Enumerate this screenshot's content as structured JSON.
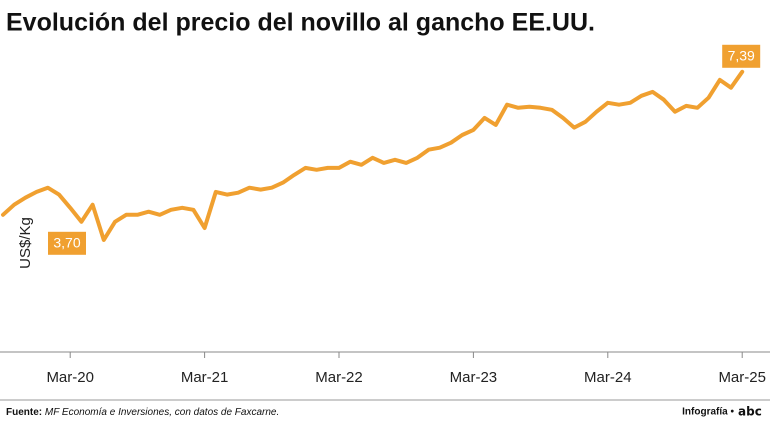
{
  "chart_data": {
    "type": "line",
    "title": "Evolución del precio del novillo al gancho EE.UU.",
    "y_label": "US$/Kg",
    "categories": [
      null,
      null,
      null,
      null,
      null,
      null,
      "Mar-20",
      null,
      null,
      null,
      null,
      null,
      null,
      null,
      null,
      null,
      null,
      null,
      "Mar-21",
      null,
      null,
      null,
      null,
      null,
      null,
      null,
      null,
      null,
      null,
      null,
      "Mar-22",
      null,
      null,
      null,
      null,
      null,
      null,
      null,
      null,
      null,
      null,
      null,
      "Mar-23",
      null,
      null,
      null,
      null,
      null,
      null,
      null,
      null,
      null,
      null,
      null,
      "Mar-24",
      null,
      null,
      null,
      null,
      null,
      null,
      null,
      null,
      null,
      null,
      null,
      "Mar-25"
    ],
    "series": [
      {
        "name": "US$/Kg",
        "color": "#f0a030",
        "values": [
          3.7,
          3.96,
          4.14,
          4.29,
          4.4,
          4.22,
          3.88,
          3.52,
          3.96,
          3.05,
          3.52,
          3.7,
          3.7,
          3.78,
          3.7,
          3.83,
          3.88,
          3.83,
          3.36,
          4.29,
          4.22,
          4.27,
          4.4,
          4.35,
          4.4,
          4.53,
          4.73,
          4.91,
          4.86,
          4.91,
          4.91,
          5.07,
          4.99,
          5.17,
          5.04,
          5.12,
          5.04,
          5.17,
          5.38,
          5.43,
          5.56,
          5.76,
          5.89,
          6.2,
          6.02,
          6.54,
          6.46,
          6.49,
          6.46,
          6.41,
          6.2,
          5.95,
          6.1,
          6.36,
          6.59,
          6.54,
          6.59,
          6.77,
          6.87,
          6.67,
          6.36,
          6.51,
          6.46,
          6.72,
          7.18,
          6.98,
          7.39
        ],
        "value_labels": [
          "3,70",
          null,
          null,
          null,
          null,
          null,
          null,
          null,
          null,
          null,
          null,
          null,
          null,
          null,
          null,
          null,
          null,
          null,
          null,
          null,
          null,
          null,
          null,
          null,
          null,
          null,
          null,
          null,
          null,
          null,
          null,
          null,
          null,
          null,
          null,
          null,
          null,
          null,
          null,
          null,
          null,
          null,
          null,
          null,
          null,
          null,
          null,
          null,
          null,
          null,
          null,
          null,
          null,
          null,
          null,
          null,
          null,
          null,
          null,
          null,
          null,
          null,
          null,
          null,
          null,
          null,
          "7,39"
        ]
      }
    ],
    "ylim": [
      0.16,
      8.21
    ],
    "grid": false,
    "footer": {
      "source_label": "Fuente:",
      "source_text": "MF Economía e Inversiones, con datos de Faxcarne.",
      "credit": "Infografía •",
      "logo": "abc"
    }
  }
}
